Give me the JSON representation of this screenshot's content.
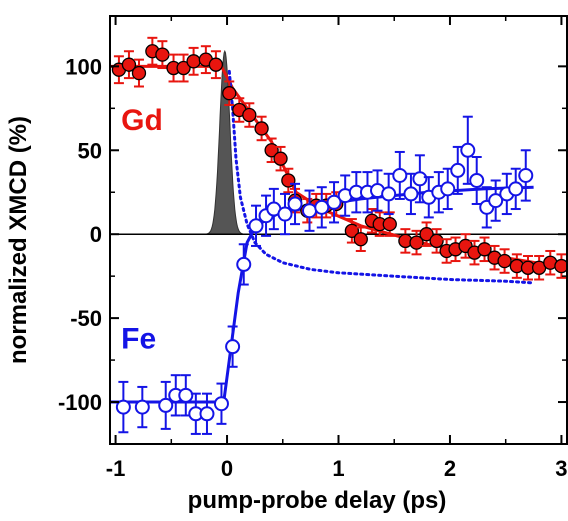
{
  "chart_data": {
    "type": "scatter",
    "xlabel": "pump-probe delay (ps)",
    "ylabel": "normalized XMCD (%)",
    "xlim": [
      -1.05,
      3.05
    ],
    "ylim": [
      -125,
      130
    ],
    "xticks": [
      -1,
      0,
      1,
      2,
      3
    ],
    "xtick_labels": [
      "-1",
      "0",
      "1",
      "2",
      "3"
    ],
    "yticks": [
      -100,
      -50,
      0,
      50,
      100
    ],
    "ytick_labels": [
      "-100",
      "-50",
      "0",
      "50",
      "100"
    ],
    "zero_line": true,
    "grid": false,
    "series": [
      {
        "name": "Gd",
        "color": "#e8150f",
        "marker": "filled-circle",
        "error_bar_color": "#e8150f",
        "points": [
          {
            "x": -0.97,
            "y": 98,
            "err": 8
          },
          {
            "x": -0.88,
            "y": 101,
            "err": 8
          },
          {
            "x": -0.79,
            "y": 96,
            "err": 8
          },
          {
            "x": -0.67,
            "y": 109,
            "err": 8
          },
          {
            "x": -0.58,
            "y": 107,
            "err": 8
          },
          {
            "x": -0.48,
            "y": 99,
            "err": 8
          },
          {
            "x": -0.39,
            "y": 99,
            "err": 8
          },
          {
            "x": -0.3,
            "y": 103,
            "err": 8
          },
          {
            "x": -0.19,
            "y": 104,
            "err": 8
          },
          {
            "x": -0.1,
            "y": 101,
            "err": 8
          },
          {
            "x": 0.02,
            "y": 84,
            "err": 7
          },
          {
            "x": 0.11,
            "y": 74,
            "err": 7
          },
          {
            "x": 0.2,
            "y": 71,
            "err": 7
          },
          {
            "x": 0.31,
            "y": 63,
            "err": 7
          },
          {
            "x": 0.4,
            "y": 50,
            "err": 7
          },
          {
            "x": 0.48,
            "y": 45,
            "err": 7
          },
          {
            "x": 0.55,
            "y": 32,
            "err": 7
          },
          {
            "x": 0.61,
            "y": 20,
            "err": 7
          },
          {
            "x": 0.72,
            "y": 14,
            "err": 7
          },
          {
            "x": 0.8,
            "y": 17,
            "err": 7
          },
          {
            "x": 0.89,
            "y": 17,
            "err": 7
          },
          {
            "x": 0.98,
            "y": 18,
            "err": 7
          },
          {
            "x": 1.12,
            "y": 2,
            "err": 7
          },
          {
            "x": 1.2,
            "y": -3,
            "err": 7
          },
          {
            "x": 1.3,
            "y": 8,
            "err": 7
          },
          {
            "x": 1.37,
            "y": 6,
            "err": 7
          },
          {
            "x": 1.46,
            "y": 6,
            "err": 7
          },
          {
            "x": 1.6,
            "y": -4,
            "err": 7
          },
          {
            "x": 1.7,
            "y": -5,
            "err": 7
          },
          {
            "x": 1.79,
            "y": 0,
            "err": 7
          },
          {
            "x": 1.88,
            "y": -4,
            "err": 7
          },
          {
            "x": 1.97,
            "y": -10,
            "err": 7
          },
          {
            "x": 2.05,
            "y": -9,
            "err": 7
          },
          {
            "x": 2.14,
            "y": -7,
            "err": 7
          },
          {
            "x": 2.22,
            "y": -11,
            "err": 7
          },
          {
            "x": 2.31,
            "y": -9,
            "err": 7
          },
          {
            "x": 2.4,
            "y": -14,
            "err": 7
          },
          {
            "x": 2.49,
            "y": -16,
            "err": 7
          },
          {
            "x": 2.6,
            "y": -19,
            "err": 7
          },
          {
            "x": 2.7,
            "y": -20,
            "err": 7
          },
          {
            "x": 2.8,
            "y": -20,
            "err": 7
          },
          {
            "x": 2.9,
            "y": -17,
            "err": 7
          },
          {
            "x": 3.0,
            "y": -19,
            "err": 7
          }
        ],
        "fit": [
          [
            -1.05,
            100
          ],
          [
            -0.05,
            100
          ],
          [
            0.05,
            87
          ],
          [
            0.4,
            55
          ],
          [
            0.62,
            25
          ],
          [
            0.85,
            15
          ],
          [
            1.2,
            5
          ],
          [
            1.8,
            -6
          ],
          [
            2.4,
            -13
          ],
          [
            3.05,
            -20
          ]
        ]
      },
      {
        "name": "Fe",
        "color": "#1414e6",
        "marker": "open-circle",
        "error_bar_color": "#1414e6",
        "points": [
          {
            "x": -0.93,
            "y": -103,
            "err": 15
          },
          {
            "x": -0.76,
            "y": -103,
            "err": 12
          },
          {
            "x": -0.55,
            "y": -102,
            "err": 14
          },
          {
            "x": -0.46,
            "y": -96,
            "err": 12
          },
          {
            "x": -0.37,
            "y": -96,
            "err": 12
          },
          {
            "x": -0.28,
            "y": -107,
            "err": 12
          },
          {
            "x": -0.18,
            "y": -107,
            "err": 12
          },
          {
            "x": -0.05,
            "y": -101,
            "err": 12
          },
          {
            "x": 0.05,
            "y": -67,
            "err": 12
          },
          {
            "x": 0.15,
            "y": -18,
            "err": 12
          },
          {
            "x": 0.26,
            "y": 5,
            "err": 12
          },
          {
            "x": 0.35,
            "y": 11,
            "err": 12
          },
          {
            "x": 0.42,
            "y": 15,
            "err": 12
          },
          {
            "x": 0.52,
            "y": 12,
            "err": 12
          },
          {
            "x": 0.61,
            "y": 18,
            "err": 12
          },
          {
            "x": 0.74,
            "y": 14,
            "err": 12
          },
          {
            "x": 0.85,
            "y": 16,
            "err": 12
          },
          {
            "x": 0.96,
            "y": 19,
            "err": 12
          },
          {
            "x": 1.06,
            "y": 23,
            "err": 12
          },
          {
            "x": 1.16,
            "y": 25,
            "err": 12
          },
          {
            "x": 1.26,
            "y": 25,
            "err": 12
          },
          {
            "x": 1.35,
            "y": 26,
            "err": 12
          },
          {
            "x": 1.45,
            "y": 24,
            "err": 12
          },
          {
            "x": 1.55,
            "y": 35,
            "err": 14
          },
          {
            "x": 1.65,
            "y": 24,
            "err": 12
          },
          {
            "x": 1.73,
            "y": 33,
            "err": 14
          },
          {
            "x": 1.81,
            "y": 22,
            "err": 12
          },
          {
            "x": 1.9,
            "y": 25,
            "err": 12
          },
          {
            "x": 1.98,
            "y": 27,
            "err": 12
          },
          {
            "x": 2.07,
            "y": 38,
            "err": 14
          },
          {
            "x": 2.16,
            "y": 50,
            "err": 20
          },
          {
            "x": 2.24,
            "y": 32,
            "err": 14
          },
          {
            "x": 2.33,
            "y": 16,
            "err": 12
          },
          {
            "x": 2.41,
            "y": 20,
            "err": 12
          },
          {
            "x": 2.51,
            "y": 24,
            "err": 12
          },
          {
            "x": 2.59,
            "y": 27,
            "err": 12
          },
          {
            "x": 2.68,
            "y": 35,
            "err": 15
          }
        ],
        "fit": [
          [
            -1.05,
            -100
          ],
          [
            -0.03,
            -100
          ],
          [
            0.02,
            -75
          ],
          [
            0.1,
            -35
          ],
          [
            0.18,
            -5
          ],
          [
            0.26,
            5
          ],
          [
            0.45,
            12
          ],
          [
            0.8,
            17
          ],
          [
            1.2,
            21
          ],
          [
            1.8,
            25
          ],
          [
            2.3,
            27
          ],
          [
            2.75,
            28
          ]
        ]
      },
      {
        "name": "",
        "type": "line",
        "color": "#1414e6",
        "style": "dotted",
        "points_xy": [
          [
            0.02,
            97
          ],
          [
            0.05,
            75
          ],
          [
            0.08,
            45
          ],
          [
            0.12,
            22
          ],
          [
            0.18,
            6
          ],
          [
            0.25,
            -5
          ],
          [
            0.35,
            -12
          ],
          [
            0.5,
            -17
          ],
          [
            0.75,
            -21
          ],
          [
            1.0,
            -23
          ],
          [
            1.5,
            -25
          ],
          [
            2.0,
            -27
          ],
          [
            2.5,
            -28
          ],
          [
            2.75,
            -29
          ]
        ]
      },
      {
        "name": "",
        "type": "area",
        "color": "#555555",
        "shape": "gaussian",
        "center": -0.02,
        "sigma": 0.045,
        "peak": 109
      }
    ],
    "labels": [
      {
        "text": "Gd",
        "color": "#e8150f",
        "x": -0.95,
        "y": 68
      },
      {
        "text": "Fe",
        "color": "#1414e6",
        "x": -0.95,
        "y": -62
      }
    ]
  }
}
